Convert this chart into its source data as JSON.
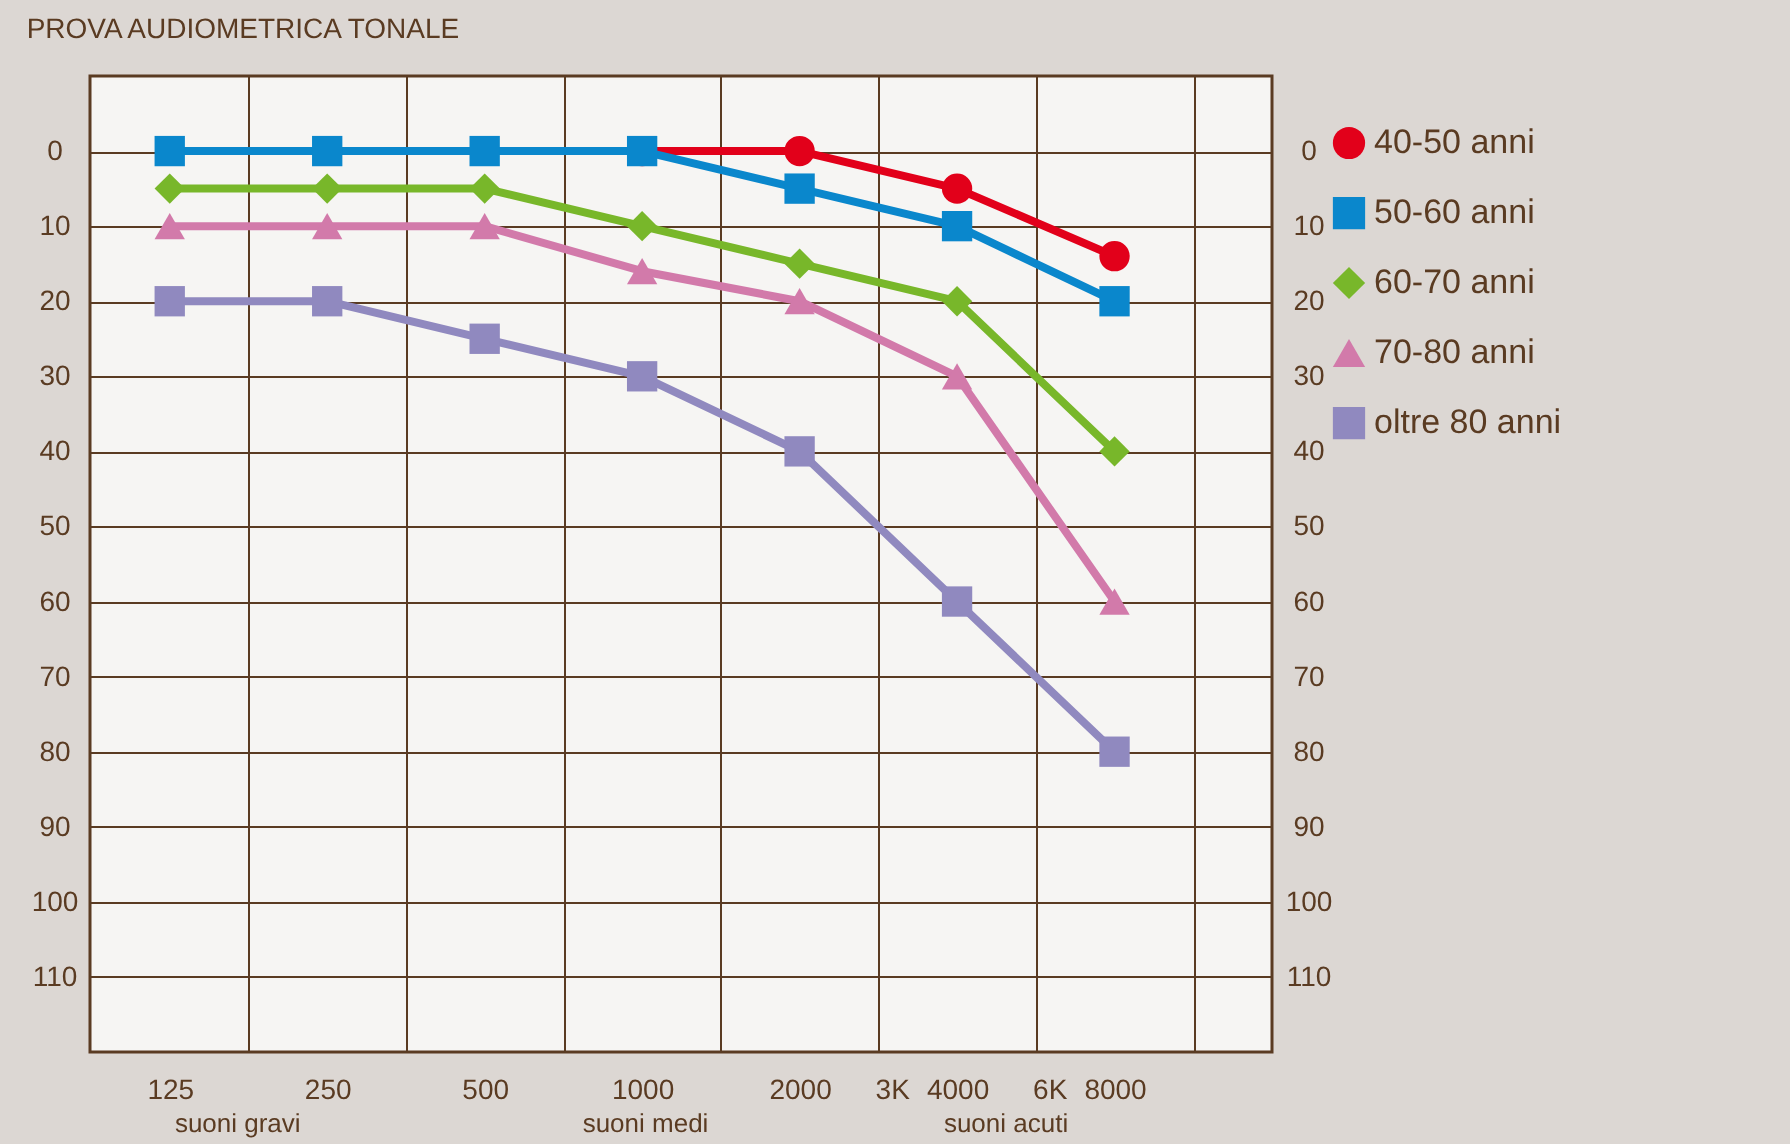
{
  "chart_data": {
    "type": "line",
    "title": "PROVA AUDIOMETRICA TONALE",
    "x": [
      125,
      250,
      500,
      1000,
      2000,
      4000,
      8000
    ],
    "series": [
      {
        "name": "40-50 anni",
        "color": "#e2001a",
        "marker": "circle",
        "x": [
          1000,
          2000,
          4000,
          8000
        ],
        "values": [
          0,
          0,
          5,
          14
        ]
      },
      {
        "name": "50-60 anni",
        "color": "#0a87cc",
        "marker": "square",
        "values": [
          0,
          0,
          0,
          0,
          5,
          10,
          20
        ]
      },
      {
        "name": "60-70 anni",
        "color": "#78b72a",
        "marker": "diamond",
        "values": [
          5,
          5,
          5,
          10,
          15,
          20,
          40
        ]
      },
      {
        "name": "70-80 anni",
        "color": "#d27aaa",
        "marker": "triangle",
        "values": [
          10,
          10,
          10,
          16,
          20,
          30,
          60
        ]
      },
      {
        "name": "oltre 80 anni",
        "color": "#9089bf",
        "marker": "square",
        "values": [
          20,
          20,
          25,
          30,
          40,
          60,
          80
        ]
      }
    ],
    "log": "x",
    "xlim": [
      88,
      16000
    ],
    "xticks": [
      125,
      {
        "value": 177,
        "label": null
      },
      250,
      {
        "value": 354,
        "label": null
      },
      500,
      {
        "value": 707,
        "label": null
      },
      1000,
      {
        "value": 1414,
        "label": null
      },
      2000,
      {
        "value": 2828,
        "label": null
      },
      {
        "value": 3000,
        "label": "3K"
      },
      4000,
      {
        "value": 5657,
        "label": null
      },
      {
        "value": 6000,
        "label": "6K"
      },
      8000,
      {
        "value": 11314,
        "label": null
      }
    ],
    "ylim": [
      120,
      -10
    ],
    "yticks": [
      0,
      10,
      20,
      30,
      40,
      50,
      60,
      70,
      80,
      90,
      100,
      110
    ],
    "y2lim": [
      120,
      -10
    ],
    "y2ticks": [
      0,
      10,
      20,
      30,
      40,
      50,
      60,
      70,
      80,
      90,
      100,
      110
    ],
    "grid": true,
    "legend": "right",
    "line_style": "solid",
    "annotations": [
      "suoni gravi",
      "suoni medi",
      "suoni acuti"
    ]
  }
}
